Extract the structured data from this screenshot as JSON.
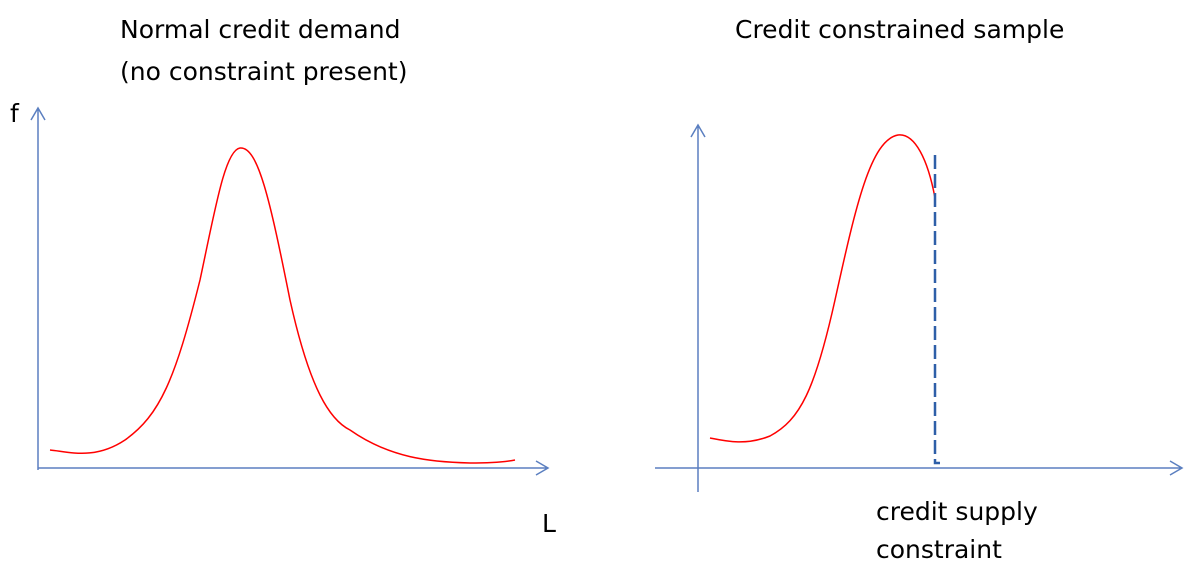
{
  "left_panel": {
    "title_lines": [
      "Normal credit demand",
      "(no constraint present)"
    ],
    "y_axis_label": "f",
    "x_axis_label": "L"
  },
  "right_panel": {
    "title": "Credit constrained sample",
    "annotation_lines": [
      "credit supply",
      "constraint"
    ]
  }
}
